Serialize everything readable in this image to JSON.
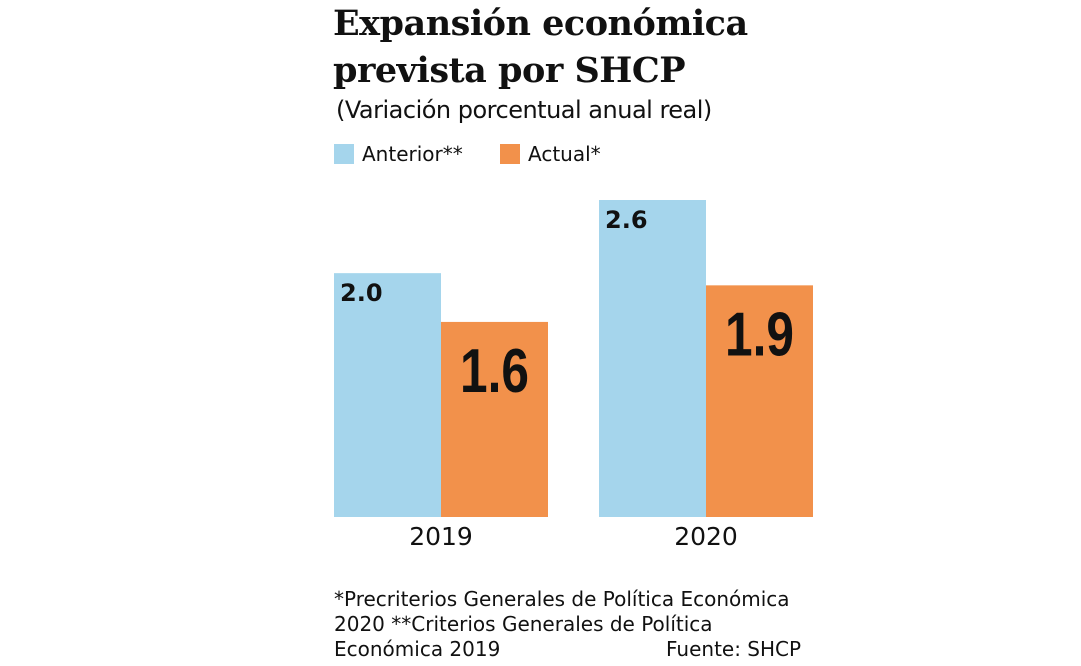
{
  "chart_data": {
    "type": "bar",
    "title": "Expansión económica prevista por SHCP",
    "subtitle": "(Variación porcentual anual real)",
    "categories": [
      "2019",
      "2020"
    ],
    "series": [
      {
        "name": "Anterior**",
        "values": [
          2.0,
          2.6
        ],
        "labels": [
          "2.0",
          "2.6"
        ],
        "color": "#a5d5ec"
      },
      {
        "name": "Actual*",
        "values": [
          1.6,
          1.9
        ],
        "labels": [
          "1.6",
          "1.9"
        ],
        "color": "#f2914b"
      }
    ],
    "ylim": [
      0,
      2.6
    ],
    "grid": false,
    "legend": "top-left"
  },
  "footnote": "*Precriterios Generales de Política Económica 2020 **Criterios Generales de Política Económica 2019",
  "source": "Fuente: SHCP"
}
